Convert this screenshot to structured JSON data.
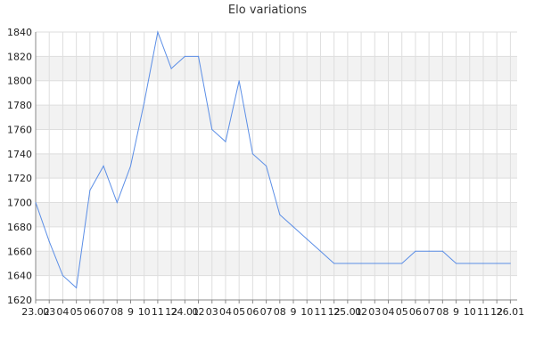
{
  "title": "Elo variations",
  "colors": {
    "line": "#5b8ee6",
    "band": "#f2f2f2",
    "grid": "#dedede",
    "axis": "#888888"
  },
  "chart_data": {
    "type": "line",
    "title": "Elo variations",
    "xlabel": "",
    "ylabel": "",
    "ylim": [
      1620,
      1840
    ],
    "yticks": [
      1620,
      1640,
      1660,
      1680,
      1700,
      1720,
      1740,
      1760,
      1780,
      1800,
      1820,
      1840
    ],
    "grid": true,
    "legend": "none",
    "x_labels": [
      "23.02",
      "03",
      "04",
      "05",
      "06",
      "07",
      "08",
      "9",
      "10",
      "11",
      "12",
      "24.01",
      "02",
      "03",
      "04",
      "05",
      "06",
      "07",
      "08",
      "9",
      "10",
      "11",
      "12",
      "25.01",
      "02",
      "03",
      "04",
      "05",
      "06",
      "07",
      "08",
      "9",
      "10",
      "11",
      "12",
      "26.01"
    ],
    "x_positions": [
      0,
      1,
      2,
      3,
      4,
      5,
      6,
      7,
      8,
      9,
      10,
      11,
      12,
      13,
      14,
      15,
      16,
      17,
      18,
      19,
      20,
      21,
      22,
      23,
      24,
      25,
      26,
      27,
      28,
      29,
      30,
      31,
      32,
      33,
      34,
      35
    ],
    "x_range": [
      0,
      35.5
    ],
    "series": [
      {
        "x": [
          0,
          1,
          2,
          3,
          4,
          5,
          6,
          7,
          8,
          9,
          10,
          11,
          12,
          13,
          14,
          15,
          16,
          17,
          18,
          19,
          20,
          21,
          22,
          23,
          24,
          25,
          26,
          27,
          28,
          29,
          30,
          31,
          32,
          33,
          34,
          35
        ],
        "values": [
          1700,
          1668,
          1640,
          1630,
          1710,
          1730,
          1700,
          1730,
          1782,
          1840,
          1810,
          1820,
          1820,
          1760,
          1750,
          1800,
          1740,
          1730,
          1690,
          1680,
          1670,
          1660,
          1650,
          1650,
          1650,
          1650,
          1650,
          1650,
          1660,
          1660,
          1660,
          1650,
          1650,
          1650,
          1650,
          1650
        ]
      }
    ]
  }
}
